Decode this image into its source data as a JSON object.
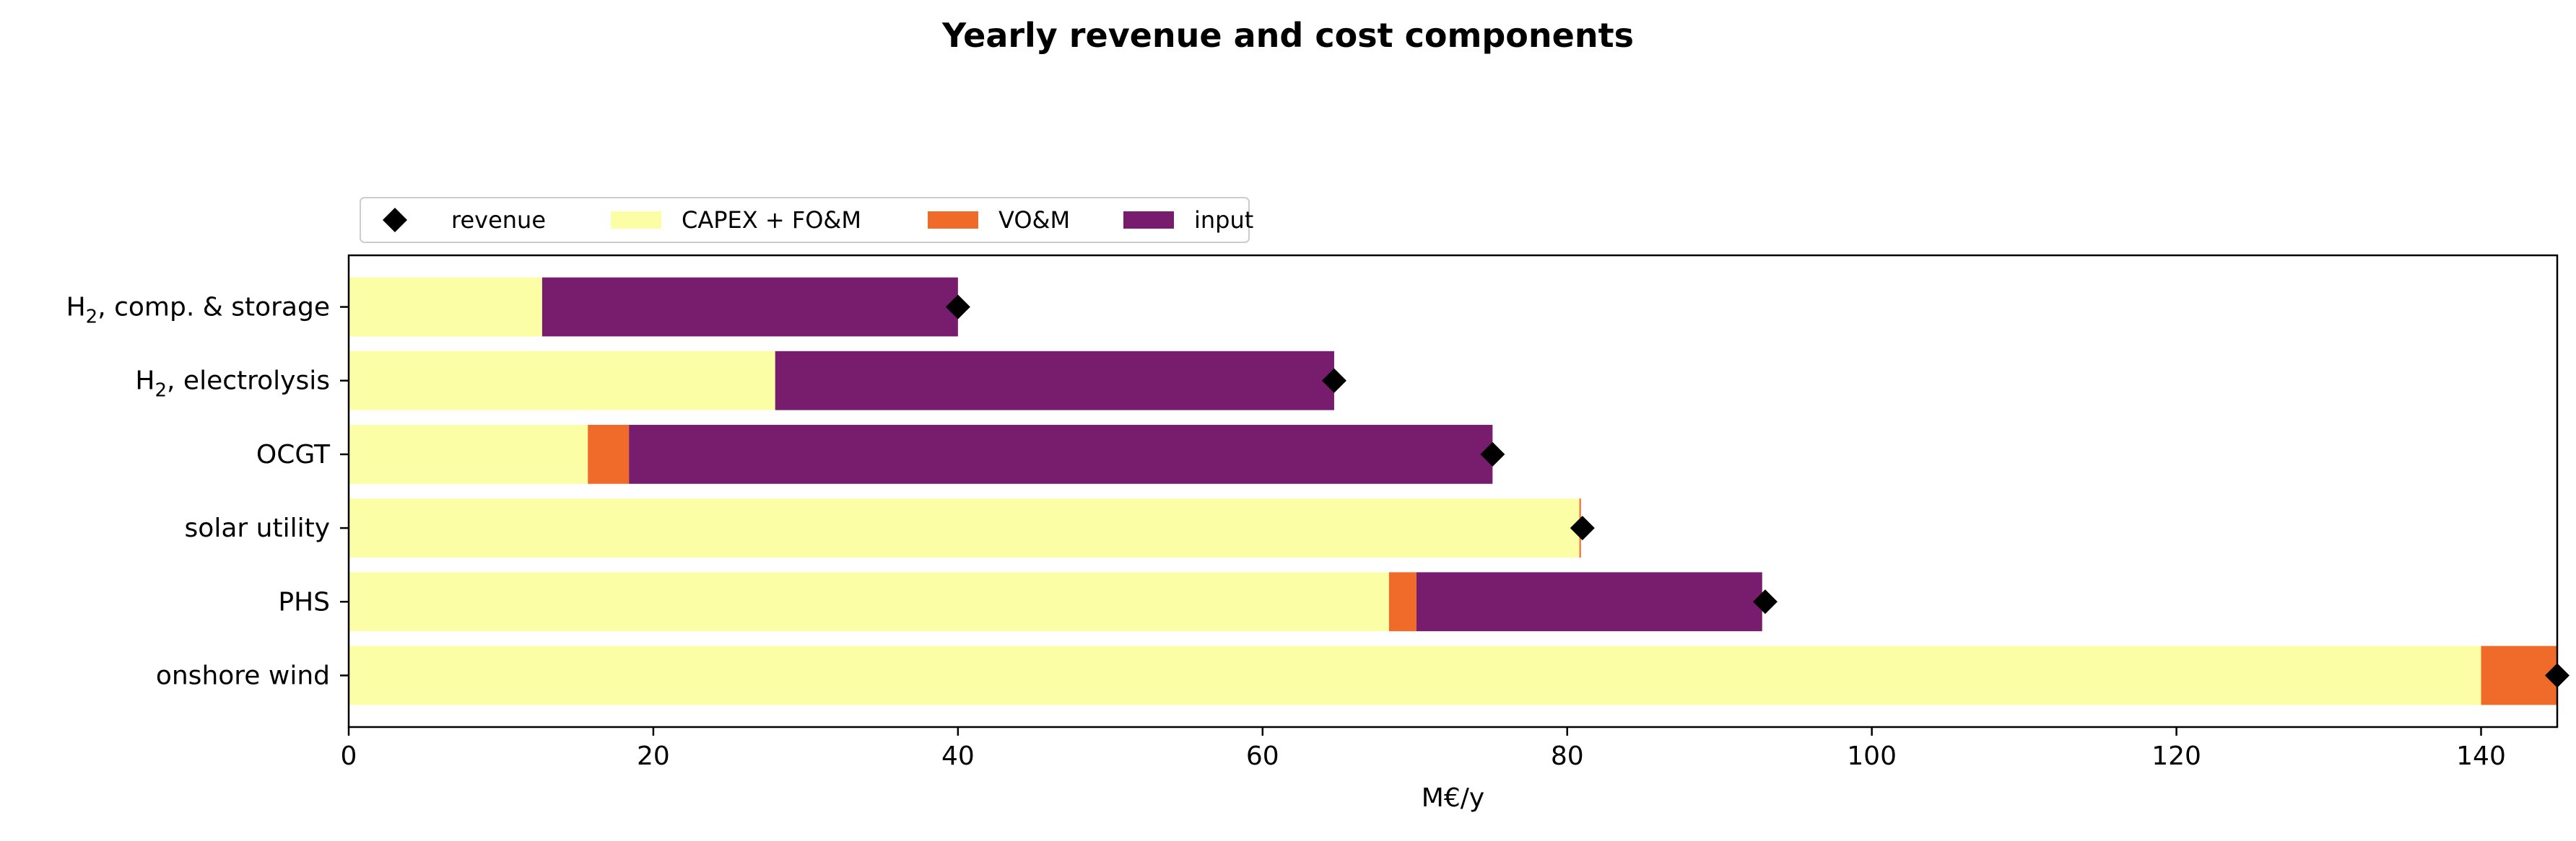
{
  "chart_data": {
    "type": "bar",
    "orientation": "horizontal",
    "stacked": true,
    "title": "Yearly revenue and cost components",
    "xlabel": "M€/y",
    "xlim": [
      0,
      145
    ],
    "xticks": [
      "0",
      "20",
      "40",
      "60",
      "80",
      "100",
      "120",
      "140"
    ],
    "categories": [
      {
        "main": "H",
        "sub": "2",
        "rest": ", comp. & storage"
      },
      {
        "main": "H",
        "sub": "2",
        "rest": ", electrolysis"
      },
      {
        "main": "OCGT",
        "sub": "",
        "rest": ""
      },
      {
        "main": "solar utility",
        "sub": "",
        "rest": ""
      },
      {
        "main": "PHS",
        "sub": "",
        "rest": ""
      },
      {
        "main": "onshore wind",
        "sub": "",
        "rest": ""
      }
    ],
    "series": [
      {
        "name": "CAPEX + FO&M",
        "color": "#fbfea5",
        "values": [
          12.7,
          28.0,
          15.7,
          80.8,
          68.3,
          140.0
        ]
      },
      {
        "name": "VO&M",
        "color": "#f06b2a",
        "values": [
          0.0,
          0.0,
          2.7,
          0.1,
          1.8,
          5.0
        ]
      },
      {
        "name": "input",
        "color": "#781c6d",
        "values": [
          27.3,
          36.7,
          56.7,
          0.0,
          22.7,
          0.0
        ]
      }
    ],
    "revenue": {
      "name": "revenue",
      "color": "#000000",
      "marker": "diamond",
      "values": [
        40.0,
        64.7,
        75.1,
        81.0,
        93.0,
        145.0
      ]
    },
    "legend": {
      "placement": "top-left, above axes",
      "order": [
        "revenue",
        "CAPEX + FO&M",
        "VO&M",
        "input"
      ]
    },
    "grid": false
  }
}
